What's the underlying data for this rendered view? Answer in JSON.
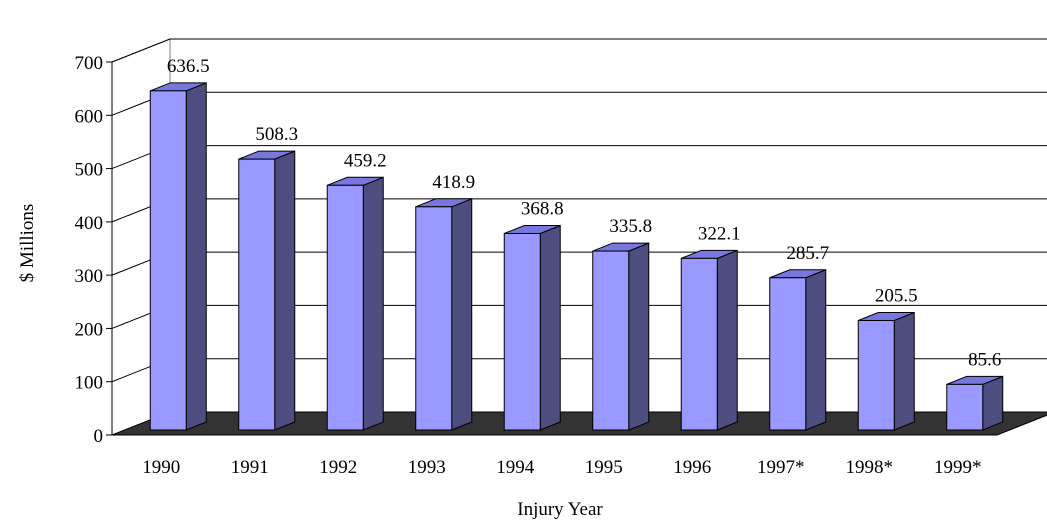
{
  "chart_data": {
    "type": "bar",
    "title": "",
    "xlabel": "Injury Year",
    "ylabel": "$ Millions",
    "categories": [
      "1990",
      "1991",
      "1992",
      "1993",
      "1994",
      "1995",
      "1996",
      "1997*",
      "1998*",
      "1999*"
    ],
    "values": [
      636.5,
      508.3,
      459.2,
      418.9,
      368.8,
      335.8,
      322.1,
      285.7,
      205.5,
      85.6
    ],
    "value_labels": [
      "636.5",
      "508.3",
      "459.2",
      "418.9",
      "368.8",
      "335.8",
      "322.1",
      "285.7",
      "205.5",
      "85.6"
    ],
    "ylim": [
      0,
      700
    ],
    "yticks": [
      "0",
      "100",
      "200",
      "300",
      "400",
      "500",
      "600",
      "700"
    ],
    "grid": true,
    "three_d": true,
    "colors": {
      "bar_front": "#9999ff",
      "bar_side": "#4d4d80",
      "bar_top": "#7777dd",
      "floor": "#333333",
      "grid": "#000000"
    }
  }
}
